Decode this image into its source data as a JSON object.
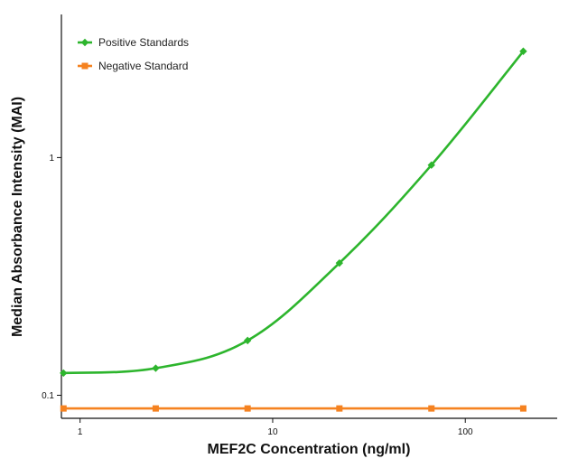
{
  "chart_data": {
    "type": "line",
    "xlabel": "MEF2C Concentration (ng/ml)",
    "ylabel": "Median Absorbance Intensity (MAI)",
    "x_scale": "log",
    "y_scale": "log",
    "xlim": [
      0.8,
      300
    ],
    "ylim": [
      0.08,
      4
    ],
    "x_ticks": [
      1,
      10,
      100
    ],
    "x_tick_labels": [
      "1",
      "10",
      "100"
    ],
    "y_ticks": [
      0.1,
      1
    ],
    "y_tick_labels": [
      "0.1",
      "1"
    ],
    "grid": false,
    "legend_position": "top-left",
    "series": [
      {
        "name": "Positive Standards",
        "color": "#2db52d",
        "marker": "diamond",
        "fit": "smooth-curve",
        "x": [
          0.82,
          2.47,
          7.41,
          22.2,
          66.7,
          200
        ],
        "y": [
          0.124,
          0.13,
          0.17,
          0.36,
          0.93,
          2.8
        ]
      },
      {
        "name": "Negative Standard",
        "color": "#f58220",
        "marker": "square",
        "fit": "line",
        "x": [
          0.82,
          2.47,
          7.41,
          22.2,
          66.7,
          200
        ],
        "y": [
          0.088,
          0.088,
          0.088,
          0.088,
          0.088,
          0.088
        ]
      }
    ]
  }
}
